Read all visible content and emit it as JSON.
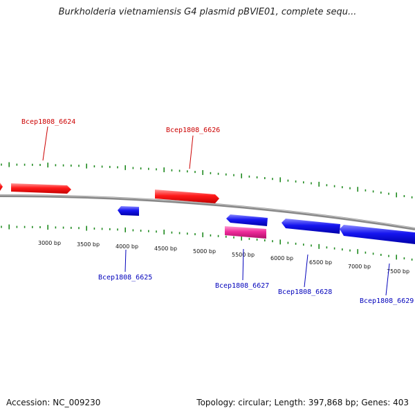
{
  "title": "Burkholderia vietnamiensis G4 plasmid pBVIE01, complete sequ...",
  "footer": {
    "accession_label": "Accession:",
    "accession": "NC_009230",
    "topology_text": "Topology: circular; Length: 397,868 bp; Genes: 403"
  },
  "colors": {
    "forward_gene": "#ff1111",
    "reverse_gene": "#1111ee",
    "highlight_gene": "#ee2a9a",
    "backbone": "#888888",
    "ticks": "#1f8a1f",
    "forward_label": "#cc0000",
    "reverse_label": "#0000bb"
  },
  "scale": {
    "ticks": [
      {
        "label": "3000 bp"
      },
      {
        "label": "3500 bp"
      },
      {
        "label": "4000 bp"
      },
      {
        "label": "4500 bp"
      },
      {
        "label": "5000 bp"
      },
      {
        "label": "5500 bp"
      },
      {
        "label": "6000 bp"
      },
      {
        "label": "6500 bp"
      },
      {
        "label": "7000 bp"
      },
      {
        "label": "7500 bp"
      }
    ]
  },
  "genes": [
    {
      "id": "Bcep1808_6624",
      "strand": "forward",
      "labeled": true
    },
    {
      "id": "Bcep1808_6625",
      "strand": "reverse",
      "labeled": true
    },
    {
      "id": "Bcep1808_6626",
      "strand": "forward",
      "labeled": true
    },
    {
      "id": "Bcep1808_6627",
      "strand": "reverse",
      "labeled": true
    },
    {
      "id": "Bcep1808_6628",
      "strand": "reverse",
      "labeled": true
    },
    {
      "id": "Bcep1808_6629",
      "strand": "reverse",
      "labeled": true
    },
    {
      "id": "edge-forward-feature",
      "strand": "forward",
      "labeled": false
    },
    {
      "id": "highlighted-feature",
      "strand": "reverse",
      "labeled": false
    }
  ]
}
